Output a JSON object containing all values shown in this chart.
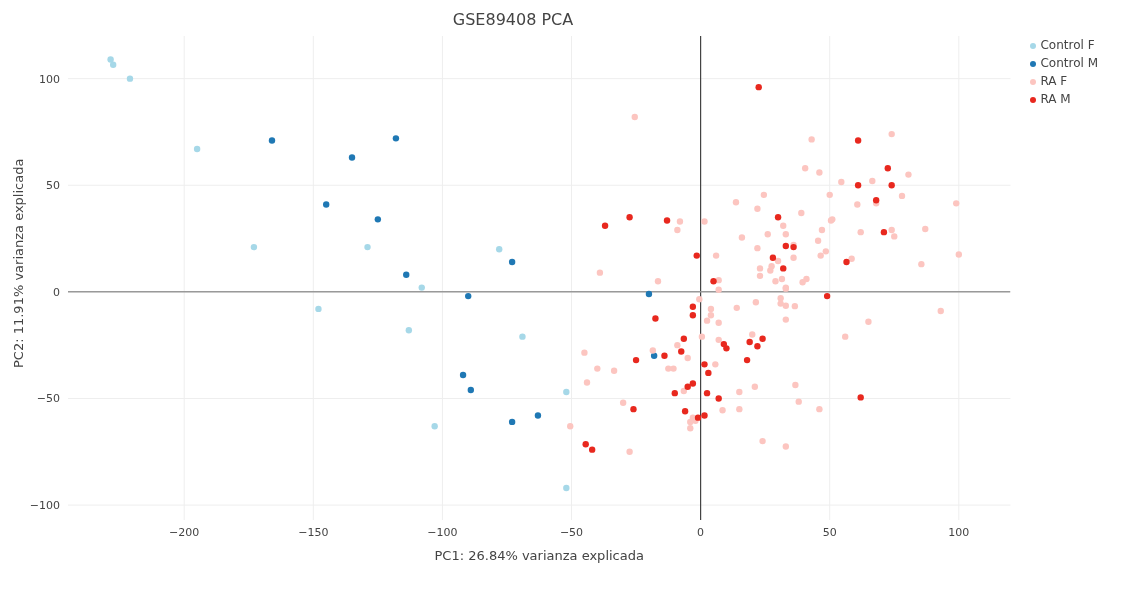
{
  "chart_data": {
    "type": "scatter",
    "title": "GSE89408 PCA",
    "xlabel": "PC1: 26.84% varianza explicada",
    "ylabel": "PC2: 11.91% varianza explicada",
    "xlim": [
      -245,
      120
    ],
    "ylim": [
      -107,
      120
    ],
    "xticks": [
      {
        "value": -200,
        "label": "−200"
      },
      {
        "value": -150,
        "label": "−150"
      },
      {
        "value": -100,
        "label": "−100"
      },
      {
        "value": -50,
        "label": "−50"
      },
      0,
      50,
      100
    ],
    "yticks": [
      {
        "value": -100,
        "label": "−100"
      },
      {
        "value": -50,
        "label": "−50"
      },
      0,
      50,
      100
    ],
    "grid": true,
    "legend": "top right",
    "marker": "circle",
    "ref_lines": [
      {
        "axis": "x",
        "value": 0,
        "color": "#444444"
      },
      {
        "axis": "y",
        "value": 0,
        "color": "#999999"
      }
    ],
    "series": [
      {
        "name": "Control F",
        "color": "#a6d8e8",
        "x": [
          -228.5,
          -227.5,
          -221,
          -195,
          -173,
          -129,
          -78,
          -108,
          -148,
          -113,
          -69,
          -103,
          -52,
          -52
        ],
        "values": [
          109,
          106.5,
          100,
          67,
          21,
          21,
          20,
          2,
          -8,
          -18,
          -21,
          -63,
          -47,
          -92
        ]
      },
      {
        "name": "Control M",
        "color": "#1f78b4",
        "x": [
          -166,
          -135,
          -118,
          -145,
          -125,
          -114,
          -73,
          -90,
          -20,
          -92,
          -89,
          -73,
          -63,
          -18
        ],
        "values": [
          71,
          63,
          72,
          41,
          34,
          8,
          14,
          -2,
          -1,
          -39,
          -46,
          -61,
          -58,
          -30
        ]
      },
      {
        "name": "RA F",
        "color": "#fcc5c0",
        "x": [
          -25.5,
          43,
          74,
          40.5,
          46,
          80.5,
          54.5,
          66.5,
          24.5,
          50,
          78,
          13.7,
          99,
          22,
          60.7,
          68,
          39,
          32,
          -8,
          1.5,
          -9,
          33,
          26,
          50.5,
          51,
          16,
          47,
          62,
          74,
          75,
          87,
          45.5,
          22,
          36,
          100,
          48.5,
          46.5,
          36,
          30,
          58.5,
          85.5,
          27.5,
          23,
          27,
          -39,
          -16.5,
          6,
          7,
          23,
          29,
          31.5,
          39.5,
          41,
          33,
          7,
          33,
          -0.5,
          4,
          14,
          21.4,
          31,
          31,
          33,
          36.5,
          93,
          4,
          2.5,
          7,
          33,
          65,
          56,
          0.5,
          7,
          20,
          -9,
          -5,
          5.7,
          -18.5,
          -45,
          -40,
          -33.5,
          -12.5,
          -10.5,
          -44,
          -6.5,
          15,
          21,
          36.7,
          -30,
          15,
          8.5,
          38,
          46,
          -3,
          -4,
          -2,
          -4,
          -50.5,
          -27.5,
          24,
          33
        ],
        "values": [
          82,
          71.5,
          74,
          58,
          56,
          55,
          51.5,
          52,
          45.5,
          45.5,
          45,
          42,
          41.5,
          39,
          41,
          41.5,
          37,
          31,
          33,
          33,
          29,
          27,
          27,
          33.5,
          34,
          25.5,
          29,
          28,
          29,
          26,
          29.5,
          24,
          20.5,
          22,
          17.5,
          19,
          17,
          16,
          14.5,
          15.5,
          13,
          12,
          11,
          10,
          9,
          5,
          17,
          5.5,
          7.5,
          5,
          6,
          4.5,
          6,
          2,
          1,
          1.5,
          -3.5,
          -8,
          -7.5,
          -4.9,
          -3,
          -5.5,
          -6.5,
          -6.7,
          -9,
          -11,
          -13.5,
          -14.5,
          -13,
          -14,
          -21,
          -21,
          -22.5,
          -20,
          -25,
          -31,
          -34,
          -27.5,
          -28.5,
          -36,
          -37,
          -36,
          -36,
          -42.5,
          -46.5,
          -47,
          -44.5,
          -43.7,
          -52,
          -55,
          -55.5,
          -51.5,
          -55,
          -59,
          -61,
          -60.5,
          -64,
          -63,
          -75,
          -70,
          -72.5
        ]
      },
      {
        "name": "RA M",
        "color": "#e8281e",
        "x": [
          22.5,
          61,
          72.5,
          61,
          74,
          68,
          30,
          -37,
          -27.5,
          -13,
          71,
          33,
          36,
          28,
          32,
          56.5,
          -1.5,
          5,
          49,
          -3,
          -3,
          -17.5,
          -6.5,
          -7.5,
          -25,
          -14,
          9,
          10,
          19,
          24,
          22,
          18,
          1.5,
          3,
          -3,
          -5,
          -10,
          2.5,
          7,
          -26,
          -6,
          -1,
          1.5,
          -44.5,
          -42,
          62
        ],
        "values": [
          96,
          71,
          58,
          50,
          50,
          43,
          35,
          31,
          35,
          33.5,
          28,
          21.5,
          21,
          16,
          11,
          14,
          17,
          5,
          -2,
          -7,
          -11,
          -12.5,
          -22,
          -28,
          -32,
          -30,
          -24.5,
          -26.5,
          -23.5,
          -22,
          -25.5,
          -32,
          -34,
          -38,
          -43,
          -44.5,
          -47.5,
          -47.5,
          -50,
          -55,
          -56,
          -59,
          -58,
          -71.5,
          -74,
          -49.5
        ]
      }
    ]
  }
}
